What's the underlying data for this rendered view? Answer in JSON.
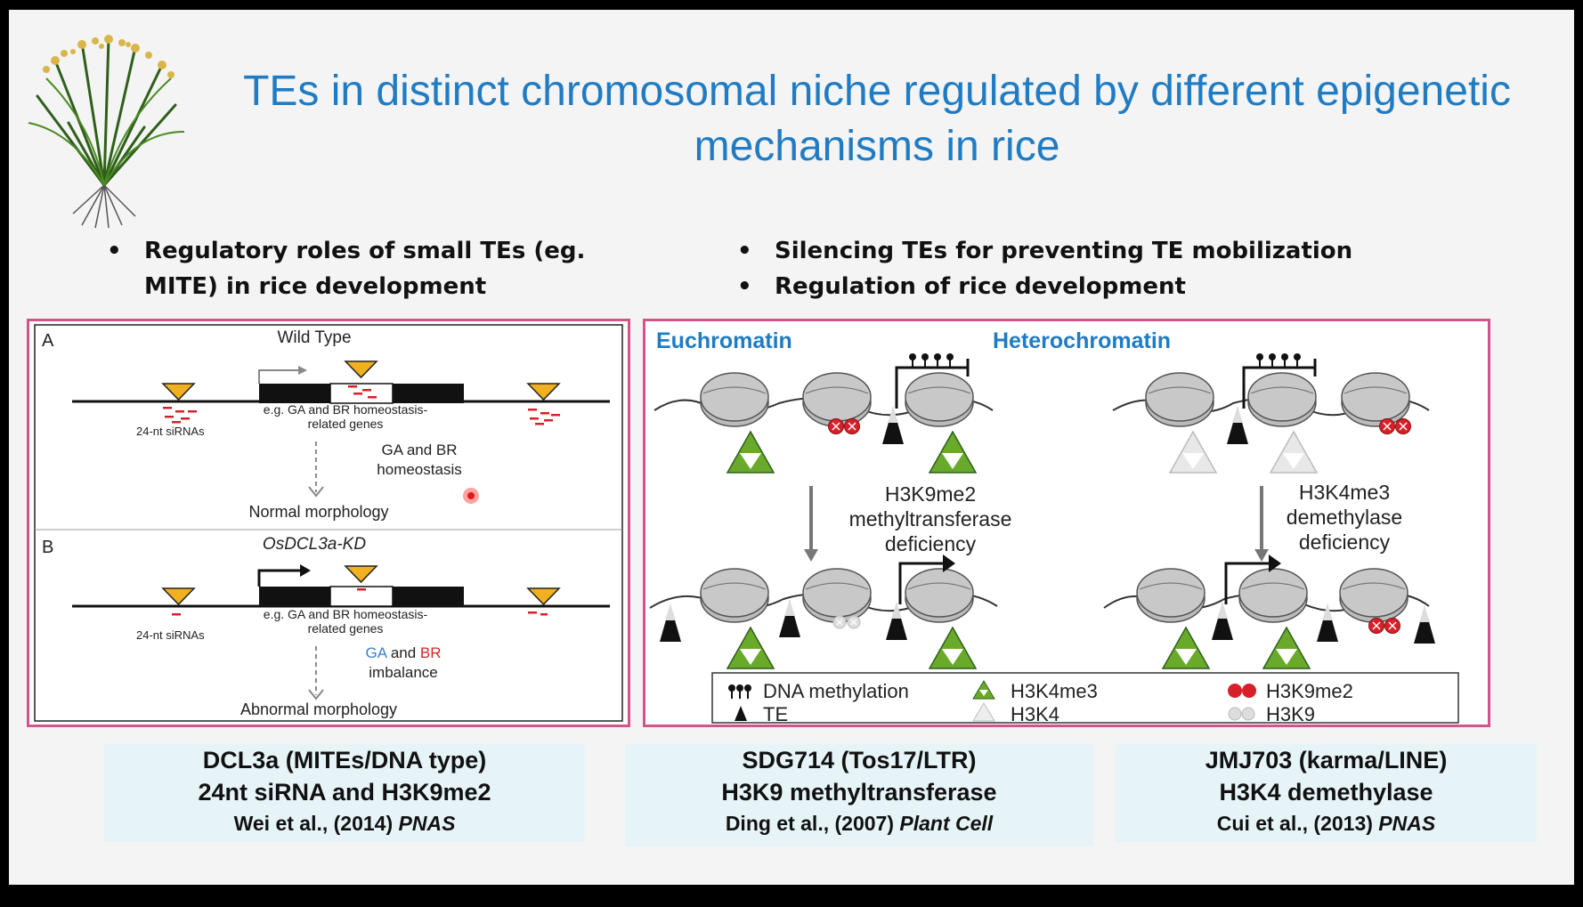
{
  "title": {
    "line1": "TEs in distinct chromosomal niche regulated by different epigenetic",
    "line2": "mechanisms in rice"
  },
  "bullets_left": [
    "Regulatory roles of  small TEs  (eg. MITE) in rice development"
  ],
  "bullets_right": [
    "Silencing TEs for preventing TE mobilization",
    "Regulation of rice development"
  ],
  "panel_a": {
    "section_a": {
      "label": "A",
      "title": "Wild Type",
      "gene_label_1": "e.g. GA and BR homeostasis-",
      "gene_label_2": "related genes",
      "sirna_label": "24-nt siRNAs",
      "effect_1": "GA and BR",
      "effect_2": "homeostasis",
      "outcome": "Normal morphology"
    },
    "section_b": {
      "label": "B",
      "title": "OsDCL3a-KD",
      "gene_label_1": "e.g. GA and BR homeostasis-",
      "gene_label_2": "related genes",
      "sirna_label": "24-nt siRNAs",
      "effect_ga": "GA",
      "effect_and": " and ",
      "effect_br": "BR",
      "effect_2": "imbalance",
      "outcome": "Abnormal morphology"
    }
  },
  "panel_b": {
    "euchromatin": "Euchromatin",
    "heterochromatin": "Heterochromatin",
    "left_arrow_1": "H3K9me2",
    "left_arrow_2": "methyltransferase",
    "left_arrow_3": "deficiency",
    "right_arrow_1": "H3K4me3",
    "right_arrow_2": "demethylase",
    "right_arrow_3": "deficiency",
    "legend": {
      "dna_methylation": "DNA methylation",
      "te": "TE",
      "h3k4me3": "H3K4me3",
      "h3k4": "H3K4",
      "h3k9me2": "H3K9me2",
      "h3k9": "H3K9"
    }
  },
  "captions": [
    {
      "line1": "DCL3a (MITEs/DNA type)",
      "line2": "24nt siRNA and H3K9me2",
      "cite": "Wei et al., (2014) ",
      "journal": "PNAS"
    },
    {
      "line1": "SDG714 (Tos17/LTR)",
      "line2": "H3K9 methyltransferase",
      "cite": "Ding et al., (2007) ",
      "journal": "Plant Cell"
    },
    {
      "line1": "JMJ703 (karma/LINE)",
      "line2": "H3K4 demethylase",
      "cite": "Cui et al., (2013) ",
      "journal": "PNAS"
    }
  ],
  "colors": {
    "title": "#1f7cc4",
    "panel_border": "#d6528b",
    "caption_bg": "#e6f4f8",
    "mite_triangle": "#f0b020",
    "h3k4me3_green": "#6aaa2a",
    "h3k9me2_red": "#d8202a",
    "ga_blue": "#3a7fd0",
    "br_red": "#d02828"
  }
}
